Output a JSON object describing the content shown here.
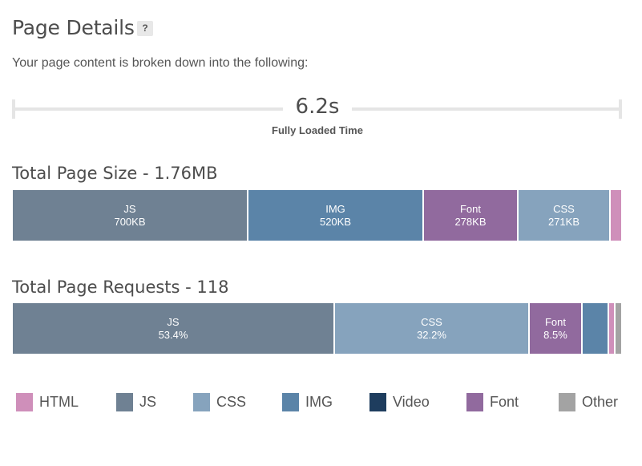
{
  "header": {
    "title": "Page Details",
    "help_label": "?",
    "subtitle": "Your page content is broken down into the following:"
  },
  "timeline": {
    "value": "6.2s",
    "label": "Fully Loaded Time"
  },
  "colors": {
    "HTML": "#cf8fba",
    "JS": "#6f8193",
    "CSS": "#86a3bd",
    "IMG": "#5b84a8",
    "Video": "#1e3d5e",
    "Font": "#916a9e",
    "Other": "#a3a3a3"
  },
  "size_section": {
    "title": "Total Page Size - 1.76MB",
    "segments": [
      {
        "type": "JS",
        "name": "JS",
        "value": "700KB",
        "kb": 700
      },
      {
        "type": "IMG",
        "name": "IMG",
        "value": "520KB",
        "kb": 520
      },
      {
        "type": "Font",
        "name": "Font",
        "value": "278KB",
        "kb": 278
      },
      {
        "type": "CSS",
        "name": "CSS",
        "value": "271KB",
        "kb": 271
      },
      {
        "type": "HTML",
        "name": "",
        "value": "",
        "kb": 30
      }
    ]
  },
  "requests_section": {
    "title": "Total Page Requests - 118",
    "segments": [
      {
        "type": "JS",
        "name": "JS",
        "value": "53.4%",
        "pct": 53.4
      },
      {
        "type": "CSS",
        "name": "CSS",
        "value": "32.2%",
        "pct": 32.2
      },
      {
        "type": "Font",
        "name": "Font",
        "value": "8.5%",
        "pct": 8.5
      },
      {
        "type": "IMG",
        "name": "",
        "value": "",
        "pct": 4.2
      },
      {
        "type": "HTML",
        "name": "",
        "value": "",
        "pct": 0.85
      },
      {
        "type": "Other",
        "name": "",
        "value": "",
        "pct": 0.85
      }
    ]
  },
  "legend": [
    {
      "type": "HTML",
      "label": "HTML"
    },
    {
      "type": "JS",
      "label": "JS"
    },
    {
      "type": "CSS",
      "label": "CSS"
    },
    {
      "type": "IMG",
      "label": "IMG"
    },
    {
      "type": "Video",
      "label": "Video"
    },
    {
      "type": "Font",
      "label": "Font"
    },
    {
      "type": "Other",
      "label": "Other"
    }
  ]
}
